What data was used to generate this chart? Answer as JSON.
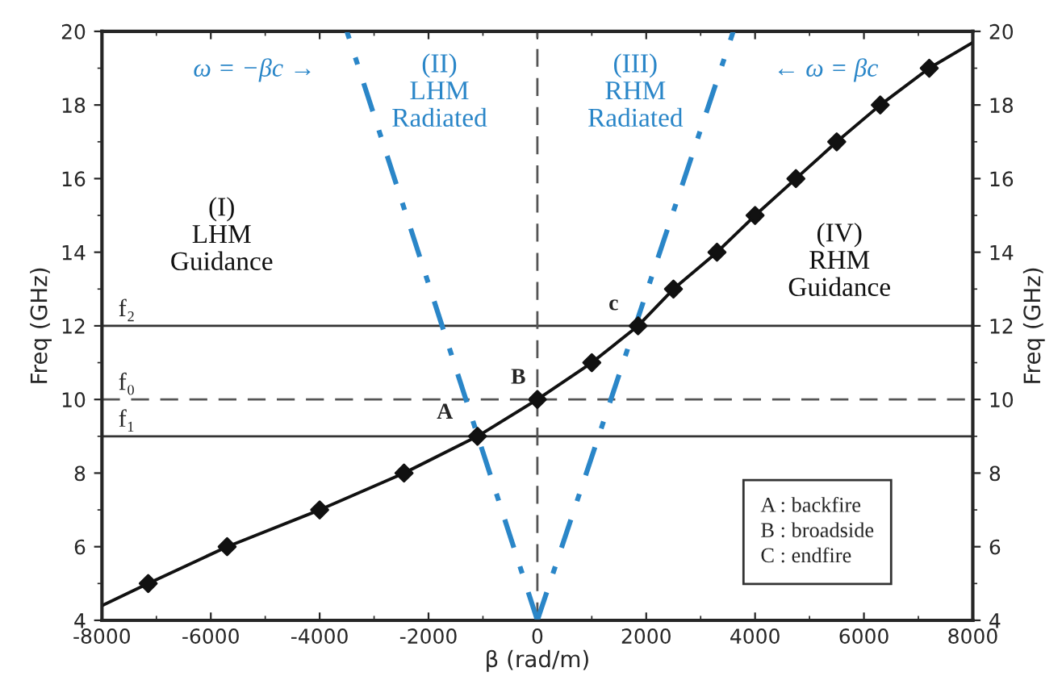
{
  "chart_data": {
    "type": "line",
    "xlabel": "β (rad/m)",
    "ylabel": "Freq (GHz)",
    "y2label": "Freq (GHz)",
    "xlim": [
      -8000,
      8000
    ],
    "xticks": [
      -8000,
      -6000,
      -4000,
      -2000,
      0,
      2000,
      4000,
      6000,
      8000
    ],
    "ylim": [
      4,
      20
    ],
    "yticks": [
      4,
      6,
      8,
      10,
      12,
      14,
      16,
      18,
      20
    ],
    "y2lim": [
      4,
      20
    ],
    "y2ticks": [
      4,
      6,
      8,
      10,
      12,
      14,
      16,
      18,
      20
    ],
    "grid": false,
    "series": [
      {
        "color": "#111111",
        "marker": "none",
        "line_style": "solid",
        "x": [
          -8000,
          -7150,
          -5700,
          -4000,
          -2450,
          -1100,
          0,
          1000,
          1850,
          2500,
          3300,
          4000,
          4750,
          5500,
          6300,
          7200,
          8000
        ],
        "values": [
          4.4,
          5,
          6,
          7,
          8,
          9,
          10,
          11,
          12,
          13,
          14,
          15,
          16,
          17,
          18,
          19,
          19.7
        ]
      },
      {
        "type": "scatter",
        "color": "#111111",
        "marker": "diamond",
        "x": [
          -7150,
          -5700,
          -4000,
          -2450,
          -1100,
          0,
          1000,
          1850,
          2500,
          3300,
          4000,
          4750,
          5500,
          6300,
          7200
        ],
        "values": [
          5,
          6,
          7,
          8,
          9,
          10,
          11,
          12,
          13,
          14,
          15,
          16,
          17,
          18,
          19
        ]
      },
      {
        "color": "#2a86c8",
        "marker": "none",
        "line_style": "dashdot",
        "x": [
          0,
          -3500
        ],
        "values": [
          4,
          20
        ]
      },
      {
        "color": "#2a86c8",
        "marker": "none",
        "line_style": "dashdot",
        "x": [
          0,
          3600
        ],
        "values": [
          4,
          20
        ]
      }
    ],
    "ref_lines": [
      {
        "axis": "y",
        "value": 12,
        "label": "f₂",
        "color": "#333333",
        "line_style": "solid"
      },
      {
        "axis": "y",
        "value": 10,
        "label": "f₀",
        "color": "#555555",
        "line_style": "dashed"
      },
      {
        "axis": "y",
        "value": 9,
        "label": "f₁",
        "color": "#333333",
        "line_style": "solid"
      },
      {
        "axis": "x",
        "value": 0,
        "color": "#555555",
        "line_style": "dashed"
      }
    ],
    "annotations": [
      "(I)\nLHM\nGuidance",
      "(II)\nLHM\nRadiated",
      "(III)\nRHM\nRadiated",
      "(IV)\nRHM\nGuidance",
      "ω = −βc →",
      "← ω = βc",
      {
        "text": "A",
        "x": -1100,
        "y": 9
      },
      {
        "text": "B",
        "x": 0,
        "y": 10
      },
      {
        "text": "c",
        "x": 1850,
        "y": 12
      },
      "A : backfire\nB : broadside\nC : endfire"
    ]
  }
}
